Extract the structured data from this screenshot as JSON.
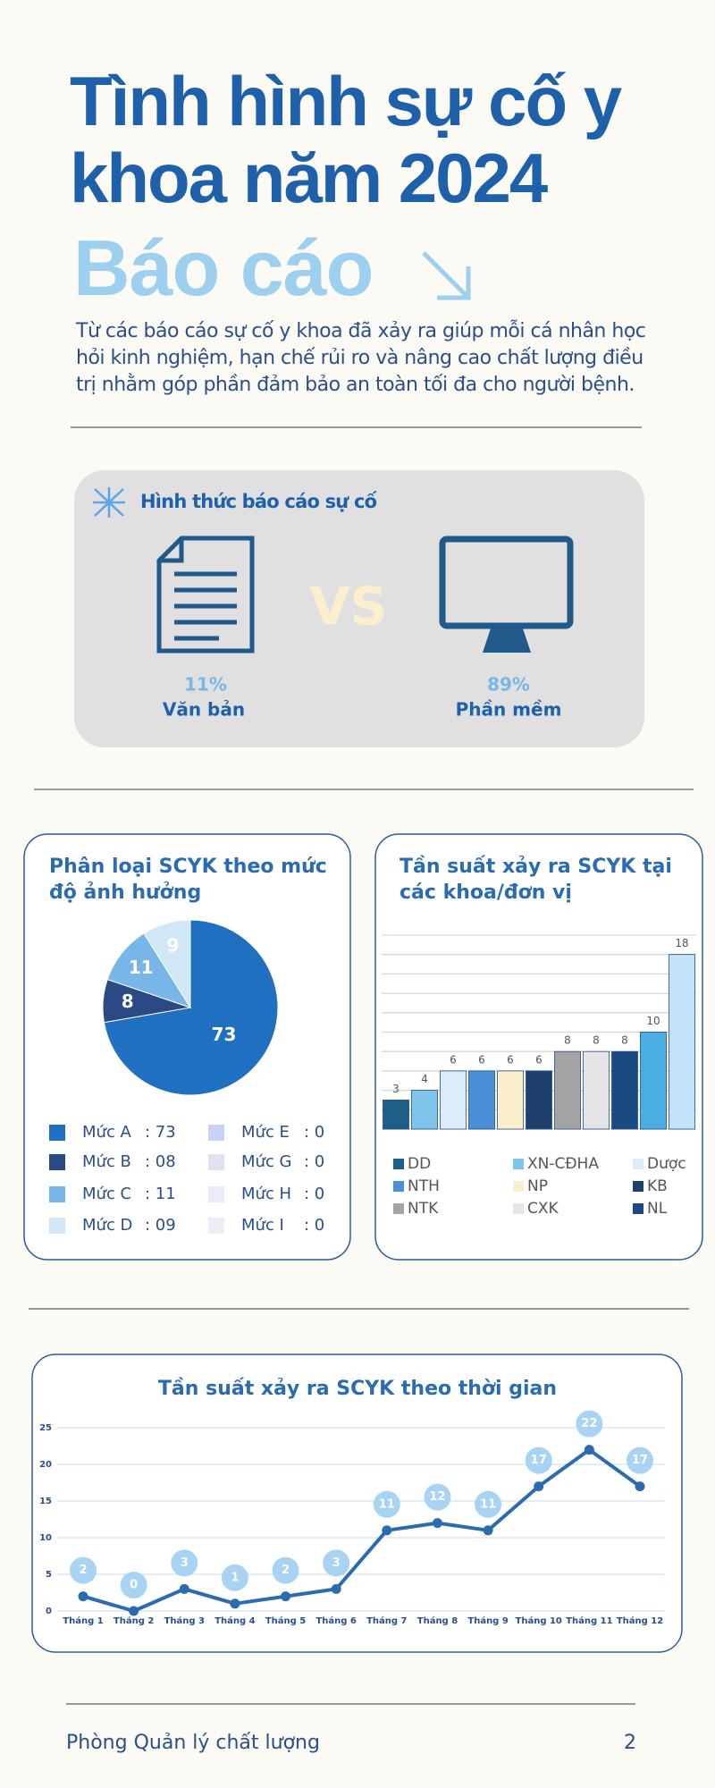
{
  "header": {
    "title": "Tình hình sự cố y khoa năm 2024",
    "subtitle": "Báo cáo",
    "description": "Từ các báo cáo sự cố y khoa đã xảy ra giúp mỗi cá nhân học hỏi kinh nghiệm, hạn chế rủi ro và nâng cao chất lượng điều trị nhằm góp phần đảm bảo an toàn tối đa cho người bệnh."
  },
  "report_form": {
    "title": "Hình thức báo cáo sự cố",
    "vs": "VS",
    "items": [
      {
        "label": "11%",
        "name": "Văn bản"
      },
      {
        "label": "89%",
        "name": "Phần mềm"
      }
    ]
  },
  "chart_data": [
    {
      "type": "pie",
      "title": "Phân loại SCYK theo mức độ ảnh hưởng",
      "categories": [
        "Mức A",
        "Mức B",
        "Mức C",
        "Mức D",
        "Mức E",
        "Mức G",
        "Mức H",
        "Mức I"
      ],
      "values": [
        73,
        8,
        11,
        9,
        0,
        0,
        0,
        0
      ],
      "value_labels": [
        ": 73",
        ": 08",
        ": 11",
        ": 09",
        ": 0",
        ": 0",
        ": 0",
        ": 0"
      ],
      "colors": [
        "#1f70c1",
        "#2b4a85",
        "#78b6e8",
        "#d0e7f6",
        "#c9d1f6",
        "#dfe2f1",
        "#e9ecfb",
        "#ecedf5"
      ]
    },
    {
      "type": "bar",
      "title": "Tần suất xảy ra SCYK tại các khoa/đơn vị",
      "categories": [
        "DD",
        "XN-CĐHA",
        "Dược",
        "NTH",
        "NP",
        "KB",
        "NTK",
        "CXK",
        "NL",
        null,
        null
      ],
      "values": [
        3,
        4,
        6,
        6,
        6,
        6,
        8,
        8,
        8,
        10,
        18
      ],
      "colors": [
        "#1d5f86",
        "#7fc4ea",
        "#dcedf9",
        "#4a8fd8",
        "#fcefcc",
        "#1f3f6d",
        "#a3a3a3",
        "#e5e5e5",
        "#1a4a80",
        "#4aaee2",
        "#c3e2f7"
      ],
      "ylim": [
        0,
        20
      ],
      "yticks": [
        0,
        2,
        4,
        6,
        8,
        10,
        12,
        14,
        16,
        18,
        20
      ],
      "grid": true,
      "tick_labels": false
    },
    {
      "type": "line",
      "title": "Tần suất xảy ra SCYK theo thời gian",
      "categories": [
        "Tháng 1",
        "Tháng 2",
        "Tháng 3",
        "Tháng 4",
        "Tháng 5",
        "Tháng 6",
        "Tháng 7",
        "Tháng 8",
        "Tháng 9",
        "Tháng 10",
        "Tháng 11",
        "Tháng 12"
      ],
      "values": [
        2,
        0,
        3,
        1,
        2,
        3,
        11,
        12,
        11,
        17,
        22,
        17
      ],
      "color": "#2b6cb0",
      "ylim": [
        0,
        25
      ],
      "yticks": [
        0,
        5,
        10,
        15,
        20,
        25
      ],
      "grid": true
    }
  ],
  "footer": {
    "department": "Phòng Quản lý chất lượng",
    "page": "2"
  }
}
